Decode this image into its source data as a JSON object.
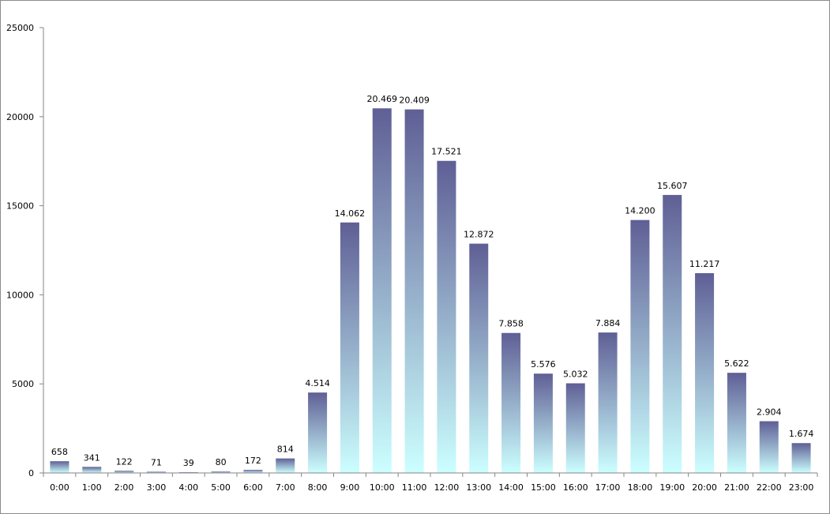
{
  "chart_data": {
    "type": "bar",
    "title": "",
    "xlabel": "",
    "ylabel": "",
    "categories": [
      "0:00",
      "1:00",
      "2:00",
      "3:00",
      "4:00",
      "5:00",
      "6:00",
      "7:00",
      "8:00",
      "9:00",
      "10:00",
      "11:00",
      "12:00",
      "13:00",
      "14:00",
      "15:00",
      "16:00",
      "17:00",
      "18:00",
      "19:00",
      "20:00",
      "21:00",
      "22:00",
      "23:00"
    ],
    "values": [
      658,
      341,
      122,
      71,
      39,
      80,
      172,
      814,
      4514,
      14062,
      20469,
      20409,
      17521,
      12872,
      7858,
      5576,
      5032,
      7884,
      14200,
      15607,
      11217,
      5622,
      2904,
      1674
    ],
    "value_labels": [
      "658",
      "341",
      "122",
      "71",
      "39",
      "80",
      "172",
      "814",
      "4.514",
      "14.062",
      "20.469",
      "20.409",
      "17.521",
      "12.872",
      "7.858",
      "5.576",
      "5.032",
      "7.884",
      "14.200",
      "15.607",
      "11.217",
      "5.622",
      "2.904",
      "1.674"
    ],
    "ylim": [
      0,
      25000
    ],
    "yticks": [
      0,
      5000,
      10000,
      15000,
      20000,
      25000
    ],
    "ytick_labels": [
      "0",
      "5000",
      "10000",
      "15000",
      "20000",
      "25000"
    ],
    "grid": false,
    "legend": "none",
    "colors": {
      "bar_top": "#5f5f95",
      "bar_bottom": "#ccffff",
      "axis": "#868686"
    }
  }
}
